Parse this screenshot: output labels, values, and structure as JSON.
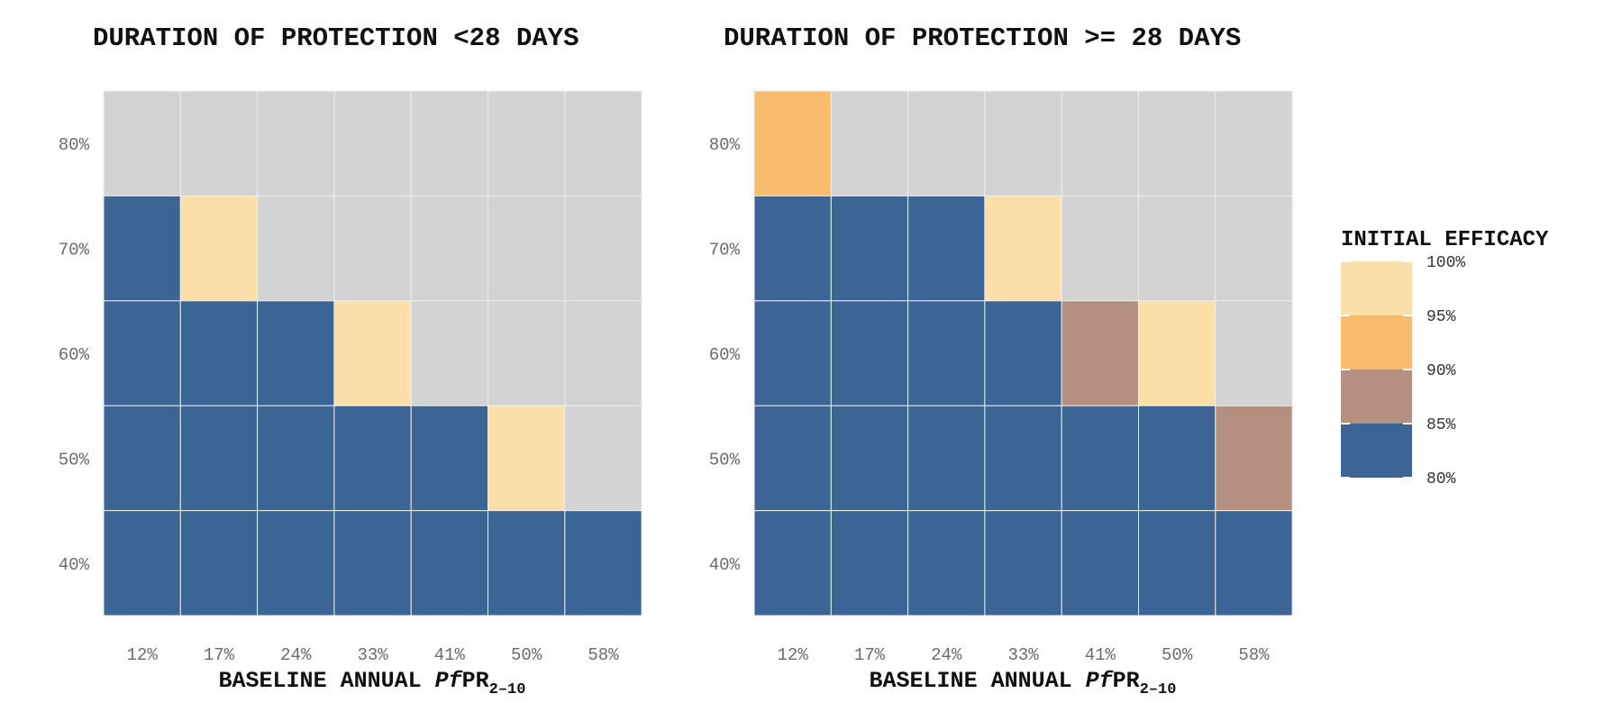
{
  "chart_data": [
    {
      "type": "heatmap",
      "title": "DURATION OF PROTECTION <28 DAYS",
      "xlabel": {
        "main": "BASELINE ANNUAL ",
        "italic": "Pf",
        "rest": "PR",
        "subscript": "2–10"
      },
      "x_categories": [
        "12%",
        "17%",
        "24%",
        "33%",
        "41%",
        "50%",
        "58%"
      ],
      "y_categories": [
        "80%",
        "70%",
        "60%",
        "50%",
        "40%"
      ],
      "values": [
        [
          null,
          null,
          null,
          null,
          null,
          null,
          null
        ],
        [
          80,
          100,
          null,
          null,
          null,
          null,
          null
        ],
        [
          80,
          80,
          80,
          100,
          null,
          null,
          null
        ],
        [
          80,
          80,
          80,
          80,
          80,
          100,
          null
        ],
        [
          80,
          80,
          80,
          80,
          80,
          80,
          80
        ]
      ]
    },
    {
      "type": "heatmap",
      "title": "DURATION OF PROTECTION >= 28 DAYS",
      "xlabel": {
        "main": "BASELINE ANNUAL ",
        "italic": "Pf",
        "rest": "PR",
        "subscript": "2–10"
      },
      "x_categories": [
        "12%",
        "17%",
        "24%",
        "33%",
        "41%",
        "50%",
        "58%"
      ],
      "y_categories": [
        "80%",
        "70%",
        "60%",
        "50%",
        "40%"
      ],
      "values": [
        [
          95,
          null,
          null,
          null,
          null,
          null,
          null
        ],
        [
          80,
          80,
          80,
          100,
          null,
          null,
          null
        ],
        [
          80,
          80,
          80,
          80,
          90,
          100,
          null
        ],
        [
          80,
          80,
          80,
          80,
          80,
          80,
          90
        ],
        [
          80,
          80,
          80,
          80,
          80,
          80,
          80
        ]
      ]
    }
  ],
  "legend": {
    "title": "INITIAL EFFICACY",
    "ticks": [
      "100%",
      "95%",
      "90%",
      "85%",
      "80%"
    ],
    "bands": [
      {
        "value": 100,
        "color": "#fde0a9"
      },
      {
        "value": 95,
        "color": "#f9bc6d"
      },
      {
        "value": 90,
        "color": "#b58f7f"
      },
      {
        "value": 80,
        "color": "#3c6595"
      }
    ]
  },
  "colors": {
    "empty": "#d3d3d3",
    "100": "#fde0a9",
    "95": "#f9bc6d",
    "90": "#b58f7f",
    "80": "#3c6595"
  }
}
